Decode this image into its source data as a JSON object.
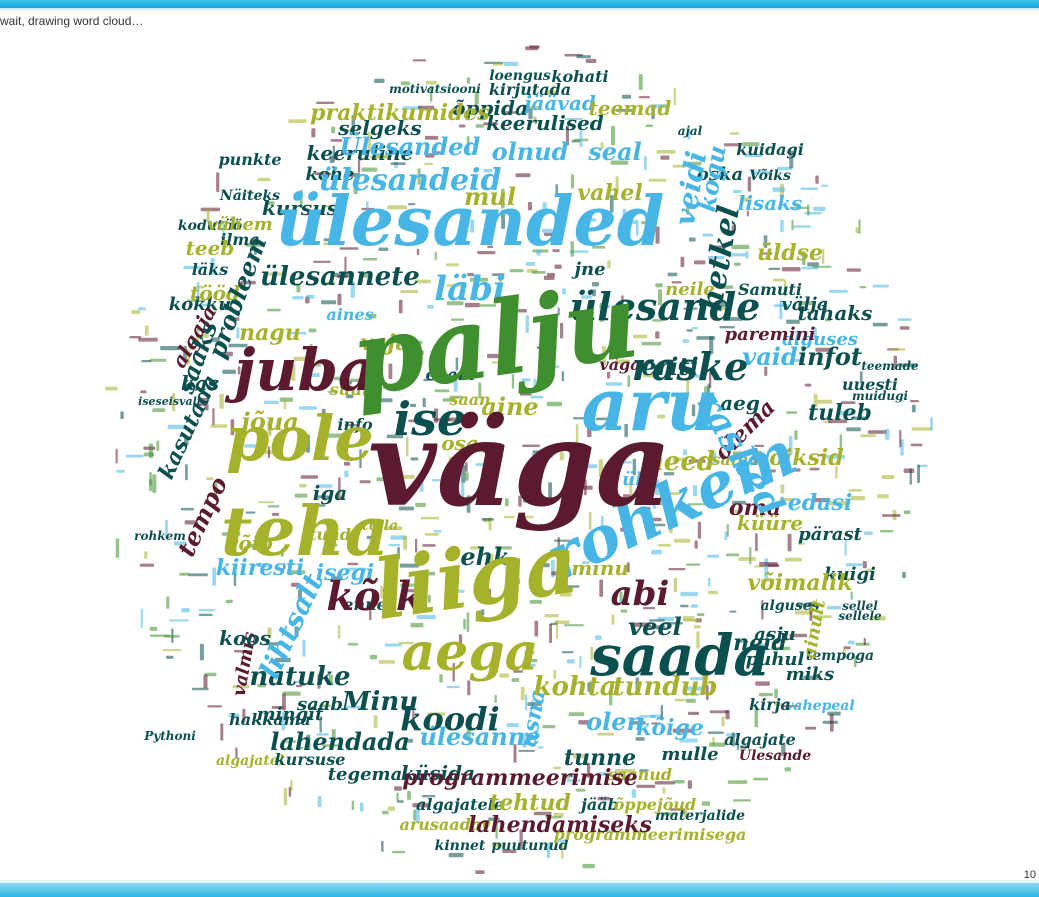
{
  "status": {
    "text": "wait, drawing word cloud…"
  },
  "footer": {
    "page_counter": "10"
  },
  "colors": {
    "maroon": "#5c1a2e",
    "green": "#3f8f2e",
    "olive": "#a6b22b",
    "teal": "#0b4f4f",
    "blue": "#47b6e6",
    "accent": "#11a6d9"
  },
  "cloud": {
    "words": [
      {
        "text": "väga",
        "color": "maroon"
      },
      {
        "text": "palju",
        "color": "green"
      },
      {
        "text": "liiga",
        "color": "olive"
      },
      {
        "text": "ülesanded",
        "color": "blue"
      },
      {
        "text": "teha",
        "color": "olive"
      },
      {
        "text": "rohkem",
        "color": "blue"
      },
      {
        "text": "aru",
        "color": "blue"
      },
      {
        "text": "saada",
        "color": "teal"
      },
      {
        "text": "pole",
        "color": "olive"
      },
      {
        "text": "juba",
        "color": "maroon"
      },
      {
        "text": "aega",
        "color": "olive"
      },
      {
        "text": "ülesande",
        "color": "teal"
      },
      {
        "text": "ise",
        "color": "teal"
      },
      {
        "text": "kõik",
        "color": "maroon"
      },
      {
        "text": "raske",
        "color": "teal"
      },
      {
        "text": "rasked",
        "color": "blue"
      },
      {
        "text": "koodi",
        "color": "teal"
      },
      {
        "text": "abi",
        "color": "maroon"
      },
      {
        "text": "ülesandeid",
        "color": "blue"
      },
      {
        "text": "Ülesanded",
        "color": "blue"
      },
      {
        "text": "ülesannete",
        "color": "teal"
      },
      {
        "text": "läbi",
        "color": "blue"
      },
      {
        "text": "mul",
        "color": "olive"
      },
      {
        "text": "olnud",
        "color": "blue"
      },
      {
        "text": "keerulised",
        "color": "teal"
      },
      {
        "text": "kohta",
        "color": "olive"
      },
      {
        "text": "tundub",
        "color": "olive"
      },
      {
        "text": "Minu",
        "color": "teal"
      },
      {
        "text": "lihtsalt",
        "color": "blue"
      },
      {
        "text": "ehk",
        "color": "teal"
      },
      {
        "text": "need",
        "color": "olive"
      },
      {
        "text": "aine",
        "color": "olive"
      },
      {
        "text": "oma",
        "color": "maroon"
      },
      {
        "text": "veel",
        "color": "teal"
      },
      {
        "text": "natuke",
        "color": "teal"
      },
      {
        "text": "lahendada",
        "color": "teal"
      },
      {
        "text": "olen",
        "color": "blue"
      },
      {
        "text": "kõige",
        "color": "blue"
      },
      {
        "text": "ülesanne",
        "color": "blue"
      },
      {
        "text": "tunne",
        "color": "teal"
      },
      {
        "text": "tehtud",
        "color": "olive"
      },
      {
        "text": "küsida",
        "color": "teal"
      },
      {
        "text": "programmeerimise",
        "color": "maroon"
      },
      {
        "text": "lahendamiseks",
        "color": "maroon"
      },
      {
        "text": "vaid",
        "color": "blue"
      },
      {
        "text": "infot",
        "color": "teal"
      },
      {
        "text": "eriti",
        "color": "teal"
      },
      {
        "text": "hetkel",
        "color": "teal"
      },
      {
        "text": "veidi",
        "color": "blue"
      },
      {
        "text": "kogu",
        "color": "blue"
      },
      {
        "text": "üldse",
        "color": "olive"
      },
      {
        "text": "võiksid",
        "color": "olive"
      },
      {
        "text": "tuleb",
        "color": "teal"
      },
      {
        "text": "edasi",
        "color": "blue"
      },
      {
        "text": "küüre",
        "color": "olive"
      },
      {
        "text": "võimalik",
        "color": "olive"
      },
      {
        "text": "neid",
        "color": "teal"
      },
      {
        "text": "tempo",
        "color": "maroon"
      },
      {
        "text": "kasutada",
        "color": "teal"
      },
      {
        "text": "jõua",
        "color": "olive"
      },
      {
        "text": "nagu",
        "color": "olive"
      },
      {
        "text": "vaja",
        "color": "olive"
      },
      {
        "text": "saaks",
        "color": "teal"
      },
      {
        "text": "probleem",
        "color": "teal"
      },
      {
        "text": "vahel",
        "color": "olive"
      },
      {
        "text": "seal",
        "color": "blue"
      },
      {
        "text": "selgeks",
        "color": "teal"
      },
      {
        "text": "keeruline",
        "color": "teal"
      },
      {
        "text": "praktikumides",
        "color": "olive"
      },
      {
        "text": "jäävad",
        "color": "blue"
      },
      {
        "text": "teemad",
        "color": "olive"
      },
      {
        "text": "õppida",
        "color": "teal"
      },
      {
        "text": "kirjutada",
        "color": "teal"
      },
      {
        "text": "loengus",
        "color": "teal"
      },
      {
        "text": "kohati",
        "color": "teal"
      },
      {
        "text": "kursus",
        "color": "teal"
      },
      {
        "text": "kohe",
        "color": "teal"
      },
      {
        "text": "punkte",
        "color": "teal"
      },
      {
        "text": "lisaks",
        "color": "blue"
      },
      {
        "text": "oska",
        "color": "teal"
      },
      {
        "text": "osa",
        "color": "olive"
      },
      {
        "text": "aeg",
        "color": "teal"
      },
      {
        "text": "enam",
        "color": "teal"
      },
      {
        "text": "algaja",
        "color": "maroon"
      },
      {
        "text": "kokku",
        "color": "teal"
      },
      {
        "text": "tööd",
        "color": "olive"
      },
      {
        "text": "teeb",
        "color": "olive"
      },
      {
        "text": "iga",
        "color": "teal"
      },
      {
        "text": "isegi",
        "color": "blue"
      },
      {
        "text": "kiiresti",
        "color": "blue"
      },
      {
        "text": "võib",
        "color": "olive"
      },
      {
        "text": "koos",
        "color": "teal"
      },
      {
        "text": "mingit",
        "color": "teal"
      },
      {
        "text": "saab",
        "color": "teal"
      },
      {
        "text": "tegema",
        "color": "teal"
      },
      {
        "text": "kursuse",
        "color": "teal"
      },
      {
        "text": "üsna",
        "color": "blue"
      },
      {
        "text": "mulle",
        "color": "teal"
      },
      {
        "text": "kirja",
        "color": "teal"
      },
      {
        "text": "miks",
        "color": "teal"
      },
      {
        "text": "puhul",
        "color": "teal"
      },
      {
        "text": "asju",
        "color": "teal"
      },
      {
        "text": "ainult",
        "color": "olive"
      },
      {
        "text": "minu",
        "color": "olive"
      },
      {
        "text": "enne",
        "color": "teal"
      },
      {
        "text": "tahaks",
        "color": "teal"
      },
      {
        "text": "alguses",
        "color": "blue"
      },
      {
        "text": "paremini",
        "color": "maroon"
      },
      {
        "text": "uuesti",
        "color": "teal"
      },
      {
        "text": "olema",
        "color": "maroon"
      },
      {
        "text": "välja",
        "color": "teal"
      },
      {
        "text": "neile",
        "color": "olive"
      },
      {
        "text": "jne",
        "color": "teal"
      },
      {
        "text": "aines",
        "color": "blue"
      },
      {
        "text": "väga",
        "color": "maroon"
      },
      {
        "text": "vähem",
        "color": "olive"
      },
      {
        "text": "ilma",
        "color": "teal"
      },
      {
        "text": "läks",
        "color": "teal"
      },
      {
        "text": "info",
        "color": "teal"
      },
      {
        "text": "kas",
        "color": "teal"
      },
      {
        "text": "suur",
        "color": "olive"
      },
      {
        "text": "saan",
        "color": "olive"
      },
      {
        "text": "sain",
        "color": "olive"
      },
      {
        "text": "pärast",
        "color": "teal"
      },
      {
        "text": "kuigi",
        "color": "teal"
      },
      {
        "text": "valmis",
        "color": "maroon"
      },
      {
        "text": "hakkama",
        "color": "teal"
      },
      {
        "text": "algajatel",
        "color": "olive"
      },
      {
        "text": "algajatele",
        "color": "teal"
      },
      {
        "text": "arusaadav",
        "color": "olive"
      },
      {
        "text": "kinnet",
        "color": "teal"
      },
      {
        "text": "jääb",
        "color": "teal"
      },
      {
        "text": "õppejõud",
        "color": "olive"
      },
      {
        "text": "materjalide",
        "color": "teal"
      },
      {
        "text": "programmeerimisega",
        "color": "olive"
      },
      {
        "text": "puutunud",
        "color": "teal"
      },
      {
        "text": "saanud",
        "color": "olive"
      },
      {
        "text": "vahepeal",
        "color": "blue"
      },
      {
        "text": "algajate",
        "color": "teal"
      },
      {
        "text": "Ülesande",
        "color": "maroon"
      },
      {
        "text": "tempoga",
        "color": "teal"
      },
      {
        "text": "teemade",
        "color": "teal"
      },
      {
        "text": "Samuti",
        "color": "teal"
      },
      {
        "text": "Võiks",
        "color": "teal"
      },
      {
        "text": "kuidagi",
        "color": "teal"
      },
      {
        "text": "kodutöö",
        "color": "teal"
      },
      {
        "text": "Näiteks",
        "color": "teal"
      },
      {
        "text": "Pythoni",
        "color": "teal"
      },
      {
        "text": "ajal",
        "color": "teal"
      },
      {
        "text": "rohkem",
        "color": "teal"
      },
      {
        "text": "muidugi",
        "color": "teal"
      },
      {
        "text": "sellel",
        "color": "teal"
      },
      {
        "text": "sellele",
        "color": "teal"
      },
      {
        "text": "tulla",
        "color": "olive"
      },
      {
        "text": "üks",
        "color": "blue"
      },
      {
        "text": "tund",
        "color": "olive"
      },
      {
        "text": "iseseisvalt",
        "color": "teal"
      },
      {
        "text": "motivatsiooni",
        "color": "teal"
      },
      {
        "text": "alguses",
        "color": "teal"
      }
    ]
  }
}
